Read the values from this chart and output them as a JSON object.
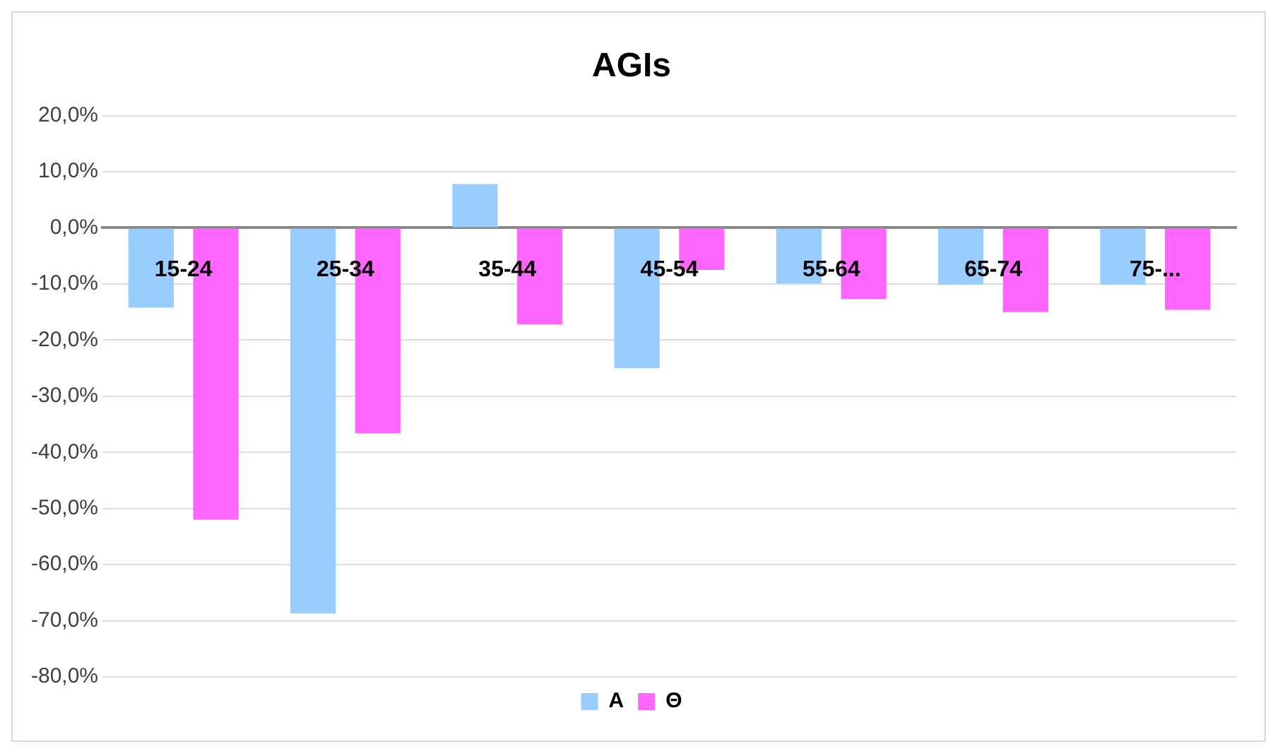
{
  "chart_data": {
    "type": "bar",
    "title": "AGIs",
    "categories": [
      "15-24",
      "25-34",
      "35-44",
      "45-54",
      "55-64",
      "65-74",
      "75-..."
    ],
    "series": [
      {
        "name": "Α",
        "color": "#99ccff",
        "values": [
          -14.2,
          -68.7,
          7.8,
          -25.0,
          -9.9,
          -10.1,
          -10.1
        ]
      },
      {
        "name": "Θ",
        "color": "#ff66ff",
        "values": [
          -52.0,
          -36.6,
          -17.2,
          -7.5,
          -12.7,
          -15.0,
          -14.6
        ]
      }
    ],
    "ylim": [
      -80,
      20
    ],
    "yticks": [
      {
        "value": -80,
        "label": "-80,0%"
      },
      {
        "value": -70,
        "label": "-70,0%"
      },
      {
        "value": -60,
        "label": "-60,0%"
      },
      {
        "value": -50,
        "label": "-50,0%"
      },
      {
        "value": -40,
        "label": "-40,0%"
      },
      {
        "value": -30,
        "label": "-30,0%"
      },
      {
        "value": -20,
        "label": "-20,0%"
      },
      {
        "value": -10,
        "label": "-10,0%"
      },
      {
        "value": 0,
        "label": "0,0%"
      },
      {
        "value": 10,
        "label": "10,0%"
      },
      {
        "value": 20,
        "label": "20,0%"
      }
    ],
    "grid": true,
    "legend": "bottom"
  }
}
